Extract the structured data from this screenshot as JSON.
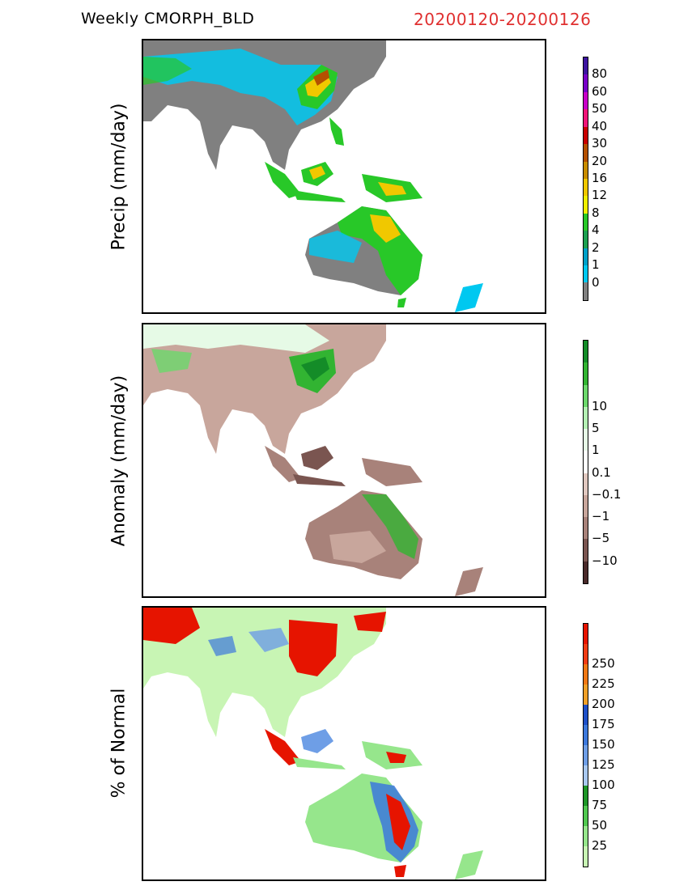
{
  "header": {
    "product": "Weekly CMORPH_BLD",
    "period": "20200120-20200126",
    "period_color": "#e03030"
  },
  "panels": [
    {
      "ylabel": "Precip (mm/day)",
      "colorbar": {
        "colors": [
          "#808080",
          "#00c8f0",
          "#00a0c8",
          "#1ca050",
          "#28c828",
          "#f0f000",
          "#f0c800",
          "#c88c00",
          "#b45000",
          "#c80000",
          "#f01478",
          "#c800c8",
          "#7800c8",
          "#3c14a0"
        ],
        "ticks": [
          "0",
          "1",
          "2",
          "4",
          "8",
          "12",
          "16",
          "20",
          "30",
          "40",
          "50",
          "60",
          "80"
        ]
      }
    },
    {
      "ylabel": "Anomaly (mm/day)",
      "colorbar": {
        "colors": [
          "#4a2a2a",
          "#7a5550",
          "#a8827a",
          "#c8a69c",
          "#e0c8c0",
          "#ffffff",
          "#e6fae6",
          "#b4f0b4",
          "#6cd86c",
          "#32b432",
          "#148c28"
        ],
        "ticks": [
          "−10",
          "−5",
          "−1",
          "−0.1",
          "0.1",
          "1",
          "5",
          "10"
        ]
      }
    },
    {
      "ylabel": "% of Normal",
      "colorbar": {
        "colors": [
          "#c8f5b4",
          "#96e68c",
          "#50c850",
          "#1e9628",
          "#a8c8f0",
          "#6e9ee6",
          "#3c78dc",
          "#1e50c8",
          "#f0a028",
          "#f07814",
          "#f03c14",
          "#e61400"
        ],
        "ticks": [
          "25",
          "50",
          "75",
          "100",
          "125",
          "150",
          "175",
          "200",
          "225",
          "250"
        ]
      }
    }
  ]
}
